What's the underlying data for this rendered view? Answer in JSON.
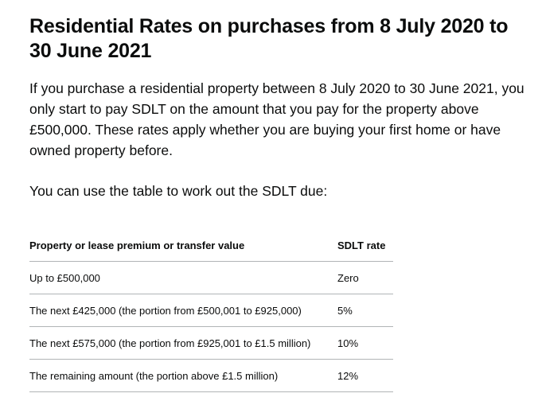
{
  "heading": "Residential Rates on purchases from 8 July 2020 to 30 June 2021",
  "paragraphs": [
    "If you purchase a residential property between 8 July 2020 to 30 June 2021, you only start to pay SDLT on the amount that you pay for the property above £500,000. These rates apply whether you are buying your first home or have owned property before.",
    "You can use the table to work out the SDLT due:"
  ],
  "table": {
    "headers": [
      "Property or lease premium or transfer value",
      "SDLT rate"
    ],
    "rows": [
      [
        "Up to £500,000",
        "Zero"
      ],
      [
        "The next £425,000 (the portion from £500,001 to £925,000)",
        "5%"
      ],
      [
        "The next £575,000 (the portion from £925,001 to £1.5 million)",
        "10%"
      ],
      [
        "The remaining amount (the portion above £1.5 million)",
        "12%"
      ]
    ]
  }
}
